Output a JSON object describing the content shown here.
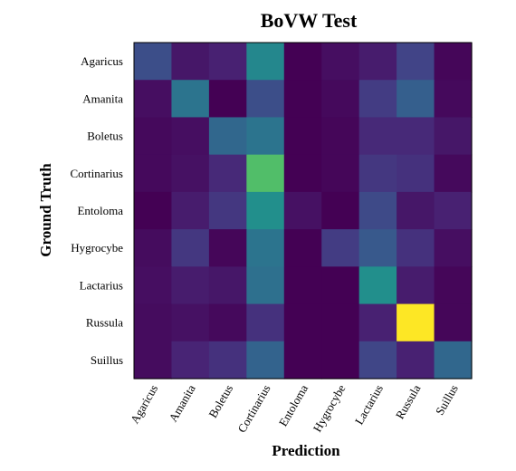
{
  "chart_data": {
    "type": "heatmap",
    "title": "BoVW Test",
    "xlabel": "Prediction",
    "ylabel": "Ground Truth",
    "x_categories": [
      "Agaricus",
      "Amanita",
      "Boletus",
      "Cortinarius",
      "Entoloma",
      "Hygrocybe",
      "Lactarius",
      "Russula",
      "Suillus"
    ],
    "y_categories": [
      "Agaricus",
      "Amanita",
      "Boletus",
      "Cortinarius",
      "Entoloma",
      "Hygrocybe",
      "Lactarius",
      "Russula",
      "Suillus"
    ],
    "colormap": "viridis",
    "value_range": [
      0,
      1
    ],
    "values": [
      [
        0.3,
        0.08,
        0.12,
        0.58,
        0.0,
        0.05,
        0.1,
        0.25,
        0.02
      ],
      [
        0.05,
        0.48,
        0.0,
        0.3,
        0.0,
        0.03,
        0.22,
        0.38,
        0.03
      ],
      [
        0.03,
        0.05,
        0.42,
        0.48,
        0.0,
        0.02,
        0.15,
        0.15,
        0.08
      ],
      [
        0.03,
        0.06,
        0.15,
        0.82,
        0.0,
        0.02,
        0.2,
        0.18,
        0.03
      ],
      [
        0.0,
        0.1,
        0.2,
        0.62,
        0.06,
        0.0,
        0.28,
        0.08,
        0.12
      ],
      [
        0.04,
        0.2,
        0.02,
        0.48,
        0.0,
        0.22,
        0.35,
        0.18,
        0.05
      ],
      [
        0.05,
        0.1,
        0.08,
        0.46,
        0.0,
        0.0,
        0.62,
        0.1,
        0.02
      ],
      [
        0.04,
        0.06,
        0.03,
        0.18,
        0.0,
        0.0,
        0.12,
        1.0,
        0.02
      ],
      [
        0.04,
        0.13,
        0.18,
        0.4,
        0.0,
        0.0,
        0.26,
        0.12,
        0.42
      ]
    ]
  }
}
